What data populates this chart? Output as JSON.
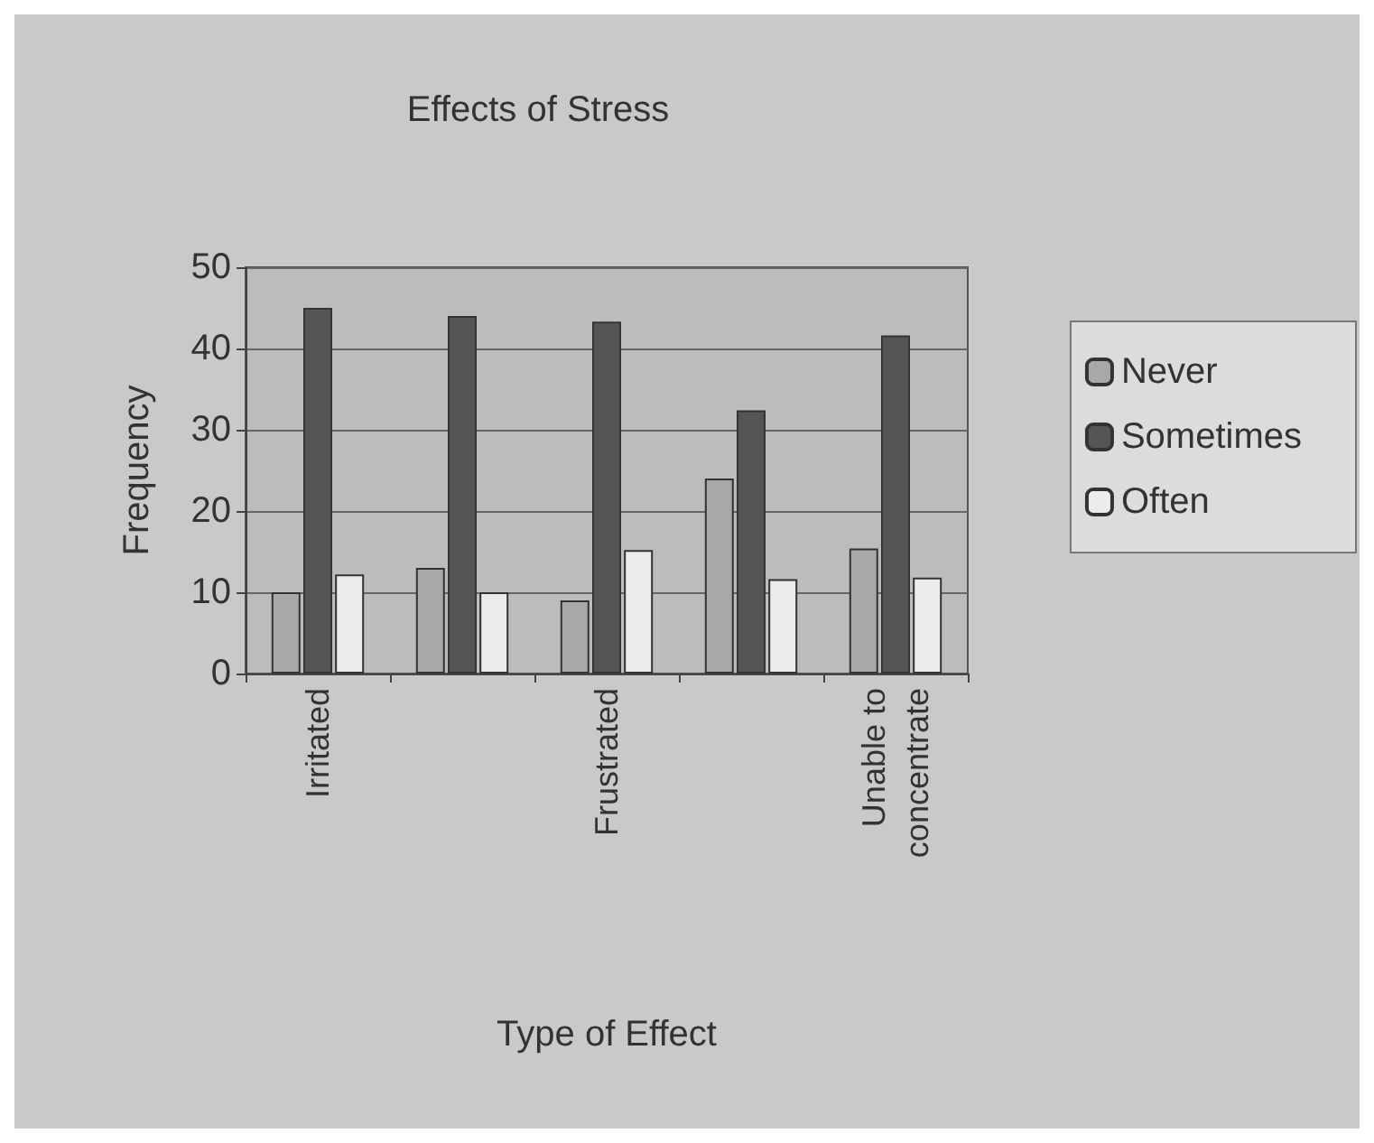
{
  "chart_data": {
    "type": "bar",
    "title": "Effects of Stress",
    "xlabel": "Type of Effect",
    "ylabel": "Frequency",
    "categories": [
      "Irritated",
      null,
      "Frustrated",
      null,
      "Unable to\nconcentrate"
    ],
    "series": [
      {
        "name": "Never",
        "color": "#a8a8a8",
        "values": [
          10,
          13,
          9,
          24,
          15.4
        ]
      },
      {
        "name": "Sometimes",
        "color": "#555555",
        "values": [
          45,
          44,
          43.3,
          32.4,
          41.6
        ]
      },
      {
        "name": "Often",
        "color": "#ececec",
        "values": [
          12.2,
          10,
          15.2,
          11.6,
          11.8
        ]
      }
    ],
    "ylim": [
      0,
      50
    ],
    "yticks": [
      0,
      10,
      20,
      30,
      40,
      50
    ],
    "grid": "y",
    "legend": "right"
  }
}
